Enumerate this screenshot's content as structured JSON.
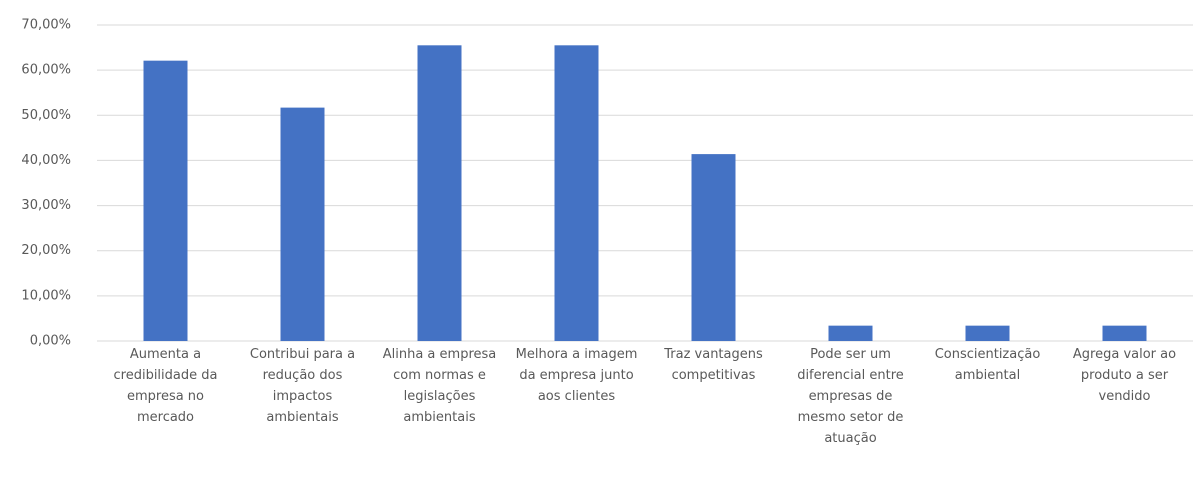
{
  "chart_data": {
    "type": "bar",
    "categories": [
      "Aumenta a credibilidade da empresa no mercado",
      "Contribui para a redução dos impactos ambientais",
      "Alinha a empresa com normas e legislações ambientais",
      "Melhora a imagem da empresa junto aos clientes",
      "Traz vantagens competitivas",
      "Pode ser um diferencial entre empresas de mesmo setor de atuação",
      "Conscientização ambiental",
      "Agrega valor ao produto a ser vendido"
    ],
    "values": [
      62.1,
      51.7,
      65.5,
      65.5,
      41.4,
      3.4,
      3.4,
      3.4
    ],
    "color": "#4472c4",
    "ylim": [
      0,
      70
    ],
    "yticks": [
      {
        "value": 0,
        "label": "0,00%"
      },
      {
        "value": 10,
        "label": "10,00%"
      },
      {
        "value": 20,
        "label": "20,00%"
      },
      {
        "value": 30,
        "label": "30,00%"
      },
      {
        "value": 40,
        "label": "40,00%"
      },
      {
        "value": 50,
        "label": "50,00%"
      },
      {
        "value": 60,
        "label": "60,00%"
      },
      {
        "value": 70,
        "label": "70,00%"
      }
    ],
    "grid": true
  }
}
